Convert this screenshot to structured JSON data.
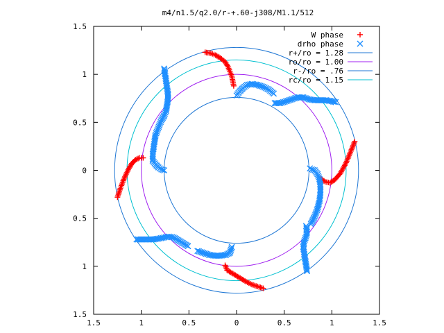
{
  "chart_data": {
    "type": "scatter",
    "title": "m4/n1.5/q2.0/r-+.60-j308/M1.1/512",
    "xlabel": "",
    "ylabel": "",
    "xlim": [
      -1.5,
      1.5
    ],
    "ylim": [
      -1.5,
      1.5
    ],
    "x_ticks": [
      -1.5,
      -1,
      -0.5,
      0,
      0.5,
      1,
      1.5
    ],
    "y_ticks": [
      -1.5,
      -1,
      -0.5,
      0,
      0.5,
      1,
      1.5
    ],
    "x_tick_labels": [
      "1.5",
      "1",
      "0.5",
      "0",
      "0.5",
      "1",
      "1.5"
    ],
    "y_tick_labels": [
      "1.5",
      "1",
      "0.5",
      "0",
      "0.5",
      "1",
      "1.5"
    ],
    "grid": false,
    "legend_position": "top-right",
    "circles": [
      {
        "name": "r+/ro = 1.28",
        "radius": 1.28,
        "color": "#1f77d4"
      },
      {
        "name": "ro/ro = 1.00",
        "radius": 1.0,
        "color": "#a020f0"
      },
      {
        "name": "r-/ro = .76",
        "radius": 0.76,
        "color": "#1f77d4"
      },
      {
        "name": "rc/ro = 1.15",
        "radius": 1.15,
        "color": "#00c0d0"
      }
    ],
    "series": [
      {
        "name": "W phase",
        "marker": "+",
        "color": "#ff0000",
        "arms": [
          {
            "x": [
              -0.33,
              -0.27,
              -0.22,
              -0.17,
              -0.12,
              -0.09,
              -0.07,
              -0.05,
              -0.04,
              -0.03
            ],
            "y": [
              1.23,
              1.22,
              1.2,
              1.17,
              1.13,
              1.08,
              1.03,
              0.98,
              0.93,
              0.88
            ]
          },
          {
            "x": [
              -1.25,
              -1.22,
              -1.19,
              -1.16,
              -1.13,
              -1.1,
              -1.06,
              -1.02,
              -0.98
            ],
            "y": [
              -0.28,
              -0.19,
              -0.11,
              -0.04,
              0.02,
              0.07,
              0.11,
              0.13,
              0.13
            ]
          },
          {
            "x": [
              0.28,
              0.22,
              0.16,
              0.1,
              0.05,
              0.0,
              -0.05,
              -0.1,
              -0.12
            ],
            "y": [
              -1.23,
              -1.21,
              -1.19,
              -1.16,
              -1.13,
              -1.1,
              -1.07,
              -1.04,
              -0.99
            ]
          },
          {
            "x": [
              1.24,
              1.2,
              1.15,
              1.09,
              1.03,
              0.98,
              0.93,
              0.88
            ],
            "y": [
              0.3,
              0.2,
              0.08,
              -0.03,
              -0.1,
              -0.13,
              -0.12,
              -0.08
            ]
          }
        ]
      },
      {
        "name": "drho phase",
        "marker": "x",
        "color": "#1f8fff",
        "arms": [
          {
            "x": [
              0.0,
              0.03,
              0.07,
              0.11,
              0.16,
              0.22,
              0.28,
              0.34,
              0.39
            ],
            "y": [
              0.78,
              0.82,
              0.86,
              0.89,
              0.9,
              0.89,
              0.87,
              0.84,
              0.8
            ]
          },
          {
            "x": [
              0.4,
              0.46,
              0.52,
              0.58,
              0.64,
              0.7,
              0.76,
              0.82,
              0.88,
              0.94,
              1.0,
              1.04
            ],
            "y": [
              0.7,
              0.7,
              0.72,
              0.74,
              0.76,
              0.76,
              0.74,
              0.73,
              0.73,
              0.73,
              0.72,
              0.71
            ]
          },
          {
            "x": [
              -0.76,
              -0.75,
              -0.74,
              -0.73,
              -0.72,
              -0.72,
              -0.73,
              -0.74,
              -0.76
            ],
            "y": [
              1.06,
              1.0,
              0.93,
              0.86,
              0.8,
              0.74,
              0.68,
              0.62,
              0.57
            ]
          },
          {
            "x": [
              -0.76,
              -0.79,
              -0.81,
              -0.83,
              -0.85,
              -0.86,
              -0.87,
              -0.88,
              -0.88
            ],
            "y": [
              0.57,
              0.52,
              0.47,
              0.42,
              0.37,
              0.31,
              0.24,
              0.17,
              0.1
            ]
          },
          {
            "x": [
              -0.88,
              -0.85,
              -0.82,
              -0.79,
              -0.76
            ],
            "y": [
              0.1,
              0.06,
              0.03,
              0.01,
              0.0
            ]
          },
          {
            "x": [
              -1.05,
              -0.99,
              -0.93,
              -0.87,
              -0.81,
              -0.76,
              -0.71,
              -0.66,
              -0.61,
              -0.56,
              -0.51
            ],
            "y": [
              -0.72,
              -0.72,
              -0.72,
              -0.72,
              -0.71,
              -0.7,
              -0.69,
              -0.7,
              -0.73,
              -0.76,
              -0.79
            ]
          },
          {
            "x": [
              -0.41,
              -0.35,
              -0.29,
              -0.23,
              -0.17,
              -0.11,
              -0.07,
              -0.05
            ],
            "y": [
              -0.84,
              -0.86,
              -0.88,
              -0.89,
              -0.89,
              -0.88,
              -0.86,
              -0.8
            ]
          },
          {
            "x": [
              0.74,
              0.73,
              0.72,
              0.71,
              0.7,
              0.71,
              0.73,
              0.74,
              0.73
            ],
            "y": [
              -1.05,
              -0.99,
              -0.93,
              -0.87,
              -0.8,
              -0.74,
              -0.69,
              -0.64,
              -0.58
            ]
          },
          {
            "x": [
              0.78,
              0.82,
              0.85,
              0.87,
              0.88,
              0.88,
              0.87,
              0.85
            ],
            "y": [
              -0.56,
              -0.48,
              -0.4,
              -0.32,
              -0.24,
              -0.16,
              -0.09,
              -0.04
            ]
          },
          {
            "x": [
              0.85,
              0.82,
              0.79,
              0.77
            ],
            "y": [
              -0.04,
              0.0,
              0.01,
              0.02
            ]
          }
        ]
      }
    ]
  }
}
